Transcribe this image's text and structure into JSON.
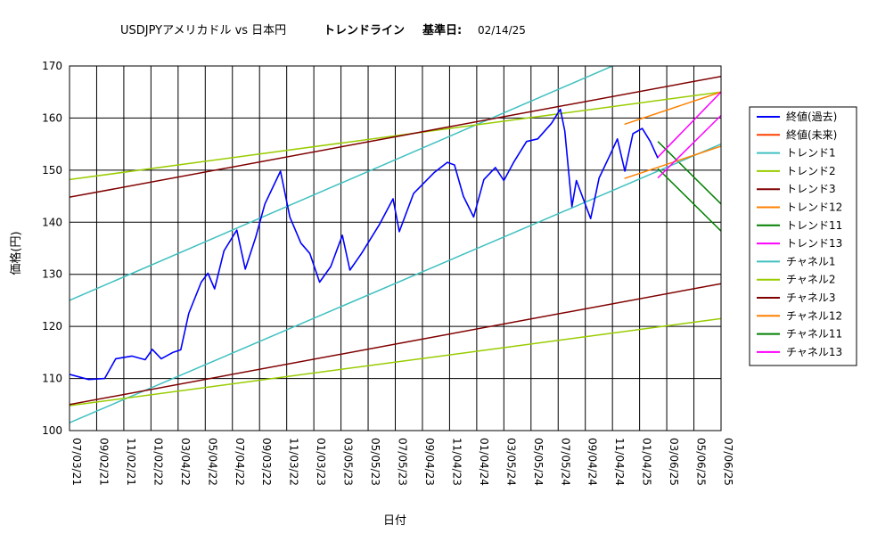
{
  "title": "USDJPYアメリカドル vs 日本円",
  "subtitle_label": "トレンドライン",
  "base_date_label": "基準日:",
  "base_date": "02/14/25",
  "chart_data": {
    "type": "line",
    "xlabel": "日付",
    "ylabel": "価格(円)",
    "ylim": [
      100,
      170
    ],
    "yticks": [
      100,
      110,
      120,
      130,
      140,
      150,
      160,
      170
    ],
    "xlim": [
      "2021-07-03",
      "2025-07-06"
    ],
    "xticks": [
      "07/03/21",
      "09/02/21",
      "11/02/21",
      "01/02/22",
      "03/04/22",
      "05/04/22",
      "07/04/22",
      "09/03/22",
      "11/03/22",
      "01/03/23",
      "03/05/23",
      "05/05/23",
      "07/05/23",
      "09/04/23",
      "11/04/23",
      "01/04/24",
      "03/05/24",
      "05/05/24",
      "07/05/24",
      "09/04/24",
      "11/04/24",
      "01/04/25",
      "03/06/25",
      "05/06/25",
      "07/06/25"
    ],
    "grid": true,
    "legend_position": "right",
    "series": [
      {
        "name": "終値(過去)",
        "color": "#0000ff",
        "points": [
          [
            "2021-07-03",
            110.8
          ],
          [
            "2021-08-15",
            109.8
          ],
          [
            "2021-09-20",
            110.0
          ],
          [
            "2021-10-15",
            113.8
          ],
          [
            "2021-11-20",
            114.3
          ],
          [
            "2021-12-20",
            113.6
          ],
          [
            "2022-01-05",
            115.6
          ],
          [
            "2022-01-25",
            113.8
          ],
          [
            "2022-02-20",
            115.0
          ],
          [
            "2022-03-10",
            115.5
          ],
          [
            "2022-03-28",
            122.5
          ],
          [
            "2022-04-25",
            128.5
          ],
          [
            "2022-05-10",
            130.2
          ],
          [
            "2022-05-25",
            127.2
          ],
          [
            "2022-06-15",
            134.5
          ],
          [
            "2022-07-14",
            138.5
          ],
          [
            "2022-08-02",
            131.0
          ],
          [
            "2022-08-25",
            137.0
          ],
          [
            "2022-09-15",
            143.5
          ],
          [
            "2022-10-20",
            149.8
          ],
          [
            "2022-11-10",
            141.0
          ],
          [
            "2022-12-05",
            136.0
          ],
          [
            "2022-12-25",
            134.0
          ],
          [
            "2023-01-16",
            128.5
          ],
          [
            "2023-02-10",
            131.5
          ],
          [
            "2023-03-08",
            137.5
          ],
          [
            "2023-03-25",
            130.8
          ],
          [
            "2023-04-20",
            134.0
          ],
          [
            "2023-05-30",
            139.5
          ],
          [
            "2023-06-30",
            144.5
          ],
          [
            "2023-07-14",
            138.2
          ],
          [
            "2023-08-15",
            145.5
          ],
          [
            "2023-09-30",
            149.5
          ],
          [
            "2023-10-30",
            151.5
          ],
          [
            "2023-11-15",
            151.0
          ],
          [
            "2023-12-05",
            145.0
          ],
          [
            "2023-12-28",
            141.0
          ],
          [
            "2024-01-20",
            148.2
          ],
          [
            "2024-02-15",
            150.5
          ],
          [
            "2024-03-05",
            148.0
          ],
          [
            "2024-03-27",
            151.5
          ],
          [
            "2024-04-25",
            155.5
          ],
          [
            "2024-05-20",
            156.0
          ],
          [
            "2024-06-20",
            159.0
          ],
          [
            "2024-07-10",
            161.7
          ],
          [
            "2024-07-20",
            157.5
          ],
          [
            "2024-08-05",
            143.0
          ],
          [
            "2024-08-15",
            148.0
          ],
          [
            "2024-09-16",
            140.7
          ],
          [
            "2024-10-05",
            148.5
          ],
          [
            "2024-10-30",
            153.0
          ],
          [
            "2024-11-15",
            156.0
          ],
          [
            "2024-12-02",
            149.8
          ],
          [
            "2024-12-20",
            157.0
          ],
          [
            "2025-01-10",
            158.0
          ],
          [
            "2025-01-28",
            155.5
          ],
          [
            "2025-02-14",
            152.3
          ]
        ]
      },
      {
        "name": "終値(未来)",
        "color": "#ff4000",
        "points": []
      },
      {
        "name": "トレンド1",
        "color": "#40c0c0",
        "points": [
          [
            "2021-07-03",
            125.0
          ],
          [
            "2024-11-04",
            170.0
          ]
        ]
      },
      {
        "name": "トレンド2",
        "color": "#99cc00",
        "points": [
          [
            "2021-07-03",
            148.2
          ],
          [
            "2025-07-06",
            165.0
          ]
        ]
      },
      {
        "name": "トレンド3",
        "color": "#800000",
        "points": [
          [
            "2021-07-03",
            144.8
          ],
          [
            "2025-07-06",
            168.0
          ]
        ]
      },
      {
        "name": "トレンド12",
        "color": "#ff8000",
        "points": [
          [
            "2024-12-01",
            158.8
          ],
          [
            "2025-07-06",
            165.0
          ]
        ]
      },
      {
        "name": "トレンド11",
        "color": "#008000",
        "points": [
          [
            "2025-02-14",
            155.5
          ],
          [
            "2025-07-06",
            143.5
          ]
        ]
      },
      {
        "name": "トレンド13",
        "color": "#ff00ff",
        "points": [
          [
            "2025-02-14",
            152.5
          ],
          [
            "2025-07-06",
            165.0
          ]
        ]
      },
      {
        "name": "チャネル1",
        "color": "#40c0c0",
        "points": [
          [
            "2021-07-03",
            101.5
          ],
          [
            "2025-07-06",
            155.0
          ]
        ]
      },
      {
        "name": "チャネル2",
        "color": "#99cc00",
        "points": [
          [
            "2021-07-03",
            104.8
          ],
          [
            "2025-07-06",
            121.5
          ]
        ]
      },
      {
        "name": "チャネル3",
        "color": "#800000",
        "points": [
          [
            "2021-07-03",
            105.0
          ],
          [
            "2025-07-06",
            128.2
          ]
        ]
      },
      {
        "name": "チャネル12",
        "color": "#ff8000",
        "points": [
          [
            "2024-12-01",
            148.4
          ],
          [
            "2025-07-06",
            154.6
          ]
        ]
      },
      {
        "name": "チャネル11",
        "color": "#008000",
        "points": [
          [
            "2025-02-14",
            150.3
          ],
          [
            "2025-07-06",
            138.3
          ]
        ]
      },
      {
        "name": "チャネル13",
        "color": "#ff00ff",
        "points": [
          [
            "2025-02-14",
            148.5
          ],
          [
            "2025-07-06",
            160.5
          ]
        ]
      }
    ]
  }
}
